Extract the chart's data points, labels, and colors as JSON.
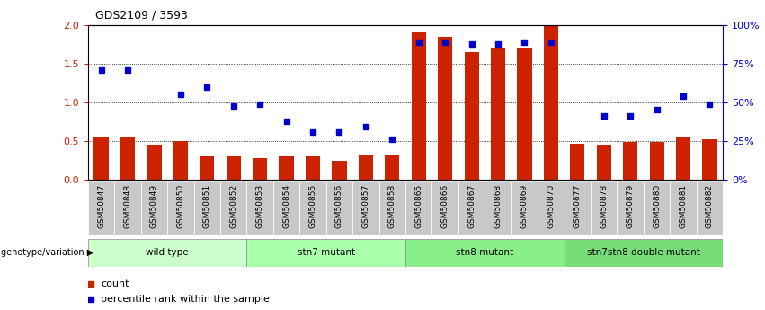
{
  "title": "GDS2109 / 3593",
  "samples": [
    "GSM50847",
    "GSM50848",
    "GSM50849",
    "GSM50850",
    "GSM50851",
    "GSM50852",
    "GSM50853",
    "GSM50854",
    "GSM50855",
    "GSM50856",
    "GSM50857",
    "GSM50858",
    "GSM50865",
    "GSM50866",
    "GSM50867",
    "GSM50868",
    "GSM50869",
    "GSM50870",
    "GSM50877",
    "GSM50878",
    "GSM50879",
    "GSM50880",
    "GSM50881",
    "GSM50882"
  ],
  "count_values": [
    0.55,
    0.55,
    0.45,
    0.5,
    0.3,
    0.3,
    0.28,
    0.3,
    0.3,
    0.25,
    0.32,
    0.33,
    1.9,
    1.85,
    1.65,
    1.7,
    1.7,
    2.0,
    0.47,
    0.45,
    0.49,
    0.49,
    0.55,
    0.52
  ],
  "pct_raw": [
    71,
    71,
    null,
    55,
    60,
    47.5,
    48.5,
    37.5,
    31,
    31,
    34,
    26,
    89,
    89,
    87.5,
    87.5,
    88.5,
    88.5,
    null,
    41.5,
    41.5,
    45,
    54,
    48.5
  ],
  "groups": [
    {
      "label": "wild type",
      "start": 0,
      "end": 6,
      "color": "#ccffcc"
    },
    {
      "label": "stn7 mutant",
      "start": 6,
      "end": 12,
      "color": "#aaffaa"
    },
    {
      "label": "stn8 mutant",
      "start": 12,
      "end": 18,
      "color": "#88ee88"
    },
    {
      "label": "stn7stn8 double mutant",
      "start": 18,
      "end": 24,
      "color": "#77dd77"
    }
  ],
  "bar_color": "#cc2200",
  "dot_color": "#0000cc",
  "ylim_left": [
    0,
    2.0
  ],
  "ylim_right": [
    0,
    100
  ],
  "yticks_left": [
    0,
    0.5,
    1.0,
    1.5,
    2.0
  ],
  "yticks_right": [
    0,
    25,
    50,
    75,
    100
  ],
  "ylabel_left_color": "#cc2200",
  "ylabel_right_color": "#0000cc",
  "legend_count_label": "count",
  "legend_percentile_label": "percentile rank within the sample",
  "bg_color": "#ffffff",
  "xtick_bg": "#c8c8c8"
}
